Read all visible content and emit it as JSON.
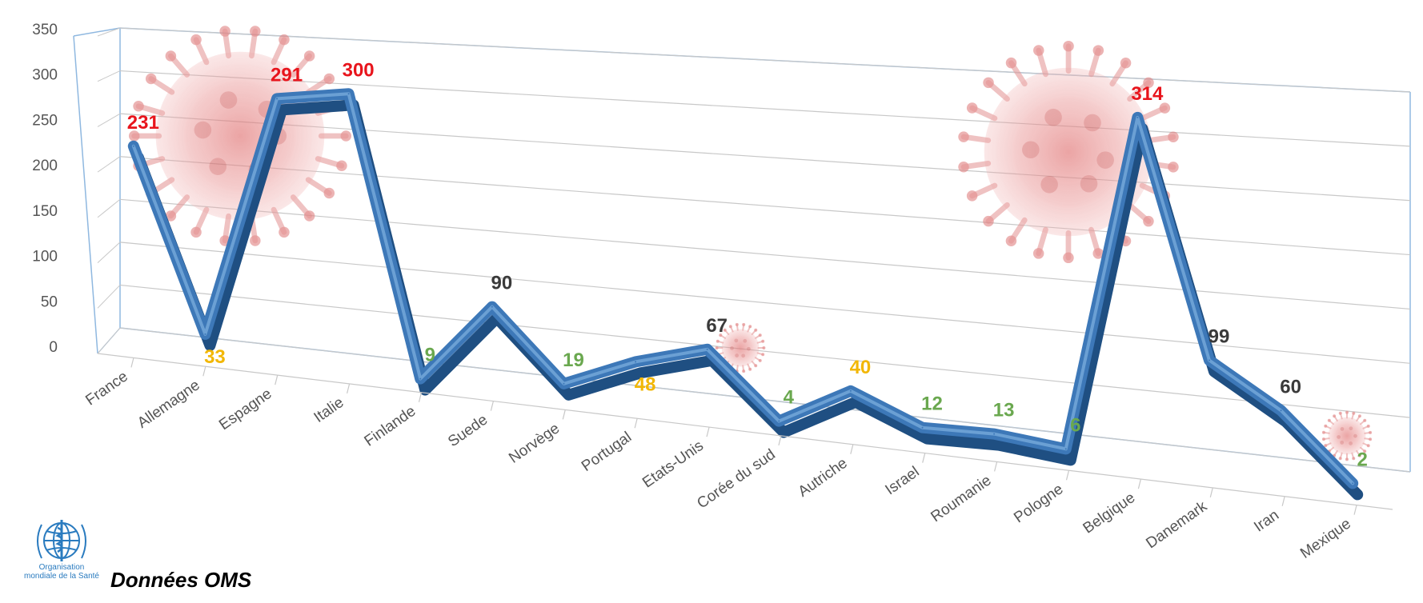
{
  "chart_data": {
    "type": "line",
    "categories": [
      "France",
      "Allemagne",
      "Espagne",
      "Italie",
      "Finlande",
      "Suede",
      "Norvège",
      "Portugal",
      "Etats-Unis",
      "Corée du sud",
      "Autriche",
      "Israel",
      "Roumanie",
      "Pologne",
      "Belgique",
      "Danemark",
      "Iran",
      "Mexique"
    ],
    "values": [
      231,
      33,
      291,
      300,
      9,
      90,
      19,
      48,
      67,
      4,
      40,
      12,
      13,
      6,
      314,
      99,
      60,
      2
    ],
    "label_colors": [
      "#e8141c",
      "#f2b705",
      "#e8141c",
      "#e8141c",
      "#6aa84f",
      "#3a3a3a",
      "#6aa84f",
      "#f2b705",
      "#3a3a3a",
      "#6aa84f",
      "#f2b705",
      "#6aa84f",
      "#6aa84f",
      "#6aa84f",
      "#e8141c",
      "#3a3a3a",
      "#3a3a3a",
      "#6aa84f"
    ],
    "y_ticks": [
      "350",
      "300",
      "250",
      "200",
      "150",
      "100",
      "50",
      "0"
    ],
    "ylim": [
      0,
      350
    ],
    "grid": true,
    "line_color": "#3d78b8",
    "label_text_colors": {
      "red": "#e8141c",
      "yellow": "#f2b705",
      "green": "#6aa84f",
      "gray": "#3a3a3a"
    },
    "decorations": [
      "virus-icon",
      "virus-icon",
      "virus-icon",
      "virus-icon"
    ]
  },
  "footer": {
    "source": "Données OMS",
    "who_name_line1": "Organisation",
    "who_name_line2": "mondiale de la Santé"
  }
}
